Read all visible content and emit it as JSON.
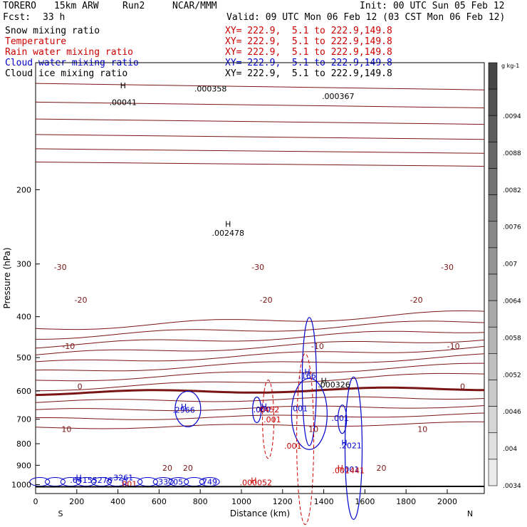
{
  "header": {
    "model": "TORERO",
    "resolution": "15km ARW",
    "run": "Run2",
    "org": "NCAR/MMM",
    "init": "Init: 00 UTC Sun 05 Feb 12",
    "fcst_label": "Fcst:",
    "fcst_value": "33 h",
    "valid": "Valid: 09 UTC Mon 06 Feb 12 (03 CST Mon 06 Feb 12)"
  },
  "fields": [
    {
      "name": "Snow mixing ratio",
      "xy": "XY= 222.9,  5.1 to 222.9,149.8",
      "color": "#000000"
    },
    {
      "name": "Temperature",
      "xy": "XY= 222.9,  5.1 to 222.9,149.8",
      "color": "#cc0000"
    },
    {
      "name": "Rain water mixing ratio",
      "xy": "XY= 222.9,  5.1 to 222.9,149.8",
      "color": "#cc0000"
    },
    {
      "name": "Cloud water mixing ratio",
      "xy": "XY= 222.9,  5.1 to 222.9,149.8",
      "color": "#0000cc"
    },
    {
      "name": "Cloud ice mixing ratio",
      "xy": "XY= 222.9,  5.1 to 222.9,149.8",
      "color": "#000000"
    }
  ],
  "chart_data": {
    "type": "cross-section contour",
    "xlabel": "Distance (km)",
    "ylabel": "Pressure (hPa)",
    "xlim": [
      0,
      2180
    ],
    "ylim": [
      1050,
      100
    ],
    "x_ticks": [
      "0",
      "200",
      "400",
      "600",
      "800",
      "1000",
      "1200",
      "1400",
      "1600",
      "1800",
      "2000"
    ],
    "y_ticks": [
      "200",
      "300",
      "400",
      "500",
      "600",
      "700",
      "800",
      "900",
      "1000"
    ],
    "x_ends": [
      "S",
      "N"
    ],
    "colorbar": {
      "unit": "g kg-1",
      "ticks": [
        ".0094",
        ".0088",
        ".0082",
        ".0076",
        ".007",
        ".0064",
        ".0058",
        ".0052",
        ".0046",
        ".004",
        ".0034"
      ],
      "range": [
        0.0034,
        0.01
      ]
    },
    "temperature_contours_c": [
      -40,
      -30,
      -20,
      -10,
      0,
      10,
      20
    ],
    "temperature_labels": [
      {
        "text": "-30",
        "x": 120,
        "p": 305
      },
      {
        "text": "-30",
        "x": 1080,
        "p": 305
      },
      {
        "text": "-30",
        "x": 2000,
        "p": 305
      },
      {
        "text": "-20",
        "x": 220,
        "p": 365
      },
      {
        "text": "-20",
        "x": 1120,
        "p": 365
      },
      {
        "text": "-20",
        "x": 1850,
        "p": 365
      },
      {
        "text": "-10",
        "x": 160,
        "p": 470
      },
      {
        "text": "-10",
        "x": 1370,
        "p": 470
      },
      {
        "text": "-10",
        "x": 2030,
        "p": 470
      },
      {
        "text": "0",
        "x": 215,
        "p": 585
      },
      {
        "text": "0",
        "x": 2075,
        "p": 585
      },
      {
        "text": "10",
        "x": 150,
        "p": 738
      },
      {
        "text": "10",
        "x": 1350,
        "p": 738
      },
      {
        "text": "10",
        "x": 1880,
        "p": 738
      },
      {
        "text": "20",
        "x": 640,
        "p": 913
      },
      {
        "text": "20",
        "x": 740,
        "p": 913
      },
      {
        "text": "20",
        "x": 1680,
        "p": 913
      }
    ],
    "max_labels": [
      {
        "text": "H",
        "x": 425,
        "p": 115,
        "color": "#000000"
      },
      {
        "text": ".00041",
        "x": 425,
        "p": 126,
        "color": "#000000"
      },
      {
        "text": ".000358",
        "x": 850,
        "p": 117,
        "color": "#000000"
      },
      {
        "text": ".000367",
        "x": 1470,
        "p": 122,
        "color": "#000000"
      },
      {
        "text": "H",
        "x": 935,
        "p": 245,
        "color": "#000000"
      },
      {
        "text": ".002478",
        "x": 935,
        "p": 257,
        "color": "#000000"
      },
      {
        "text": "H",
        "x": 1400,
        "p": 576,
        "color": "#000000"
      },
      {
        "text": ".000326",
        "x": 1450,
        "p": 588,
        "color": "#000000"
      },
      {
        "text": "H",
        "x": 720,
        "p": 664,
        "color": "#0000cc"
      },
      {
        "text": ".2966",
        "x": 720,
        "p": 676,
        "color": "#0000cc"
      },
      {
        "text": "H",
        "x": 1110,
        "p": 662,
        "color": "#0000cc"
      },
      {
        "text": ".000",
        "x": 1100,
        "p": 674,
        "color": "#0000cc"
      },
      {
        "text": "H",
        "x": 1320,
        "p": 549,
        "color": "#0000cc"
      },
      {
        "text": ".166",
        "x": 1320,
        "p": 561,
        "color": "#0000cc"
      },
      {
        "text": ".001",
        "x": 1280,
        "p": 670,
        "color": "#0000cc"
      },
      {
        "text": ".001",
        "x": 1480,
        "p": 706,
        "color": "#0000cc"
      },
      {
        "text": "H",
        "x": 1500,
        "p": 808,
        "color": "#0000cc"
      },
      {
        "text": ".2021",
        "x": 1530,
        "p": 820,
        "color": "#0000cc"
      },
      {
        "text": ".001",
        "x": 1530,
        "p": 935,
        "color": "#0000cc"
      },
      {
        "text": "H",
        "x": 210,
        "p": 978,
        "color": "#0000cc"
      },
      {
        "text": ".64155276",
        "x": 270,
        "p": 990,
        "color": "#0000cc"
      },
      {
        "text": ".3261",
        "x": 420,
        "p": 978,
        "color": "#0000cc"
      },
      {
        "text": ".33705",
        "x": 650,
        "p": 1000,
        "color": "#0000cc"
      },
      {
        "text": ".749",
        "x": 840,
        "p": 1000,
        "color": "#0000cc"
      },
      {
        "text": ".0452",
        "x": 1130,
        "p": 674,
        "color": "#cc0000"
      },
      {
        "text": ".001",
        "x": 1150,
        "p": 712,
        "color": "#cc0000"
      },
      {
        "text": ".001",
        "x": 1250,
        "p": 822,
        "color": "#cc0000"
      },
      {
        "text": "H",
        "x": 1480,
        "p": 928,
        "color": "#cc0000"
      },
      {
        "text": ".001441",
        "x": 1520,
        "p": 940,
        "color": "#cc0000"
      },
      {
        "text": "H",
        "x": 1060,
        "p": 993,
        "color": "#cc0000"
      },
      {
        "text": ".000052",
        "x": 1070,
        "p": 1005,
        "color": "#cc0000"
      },
      {
        "text": ".001",
        "x": 450,
        "p": 1011,
        "color": "#cc0000"
      }
    ]
  }
}
